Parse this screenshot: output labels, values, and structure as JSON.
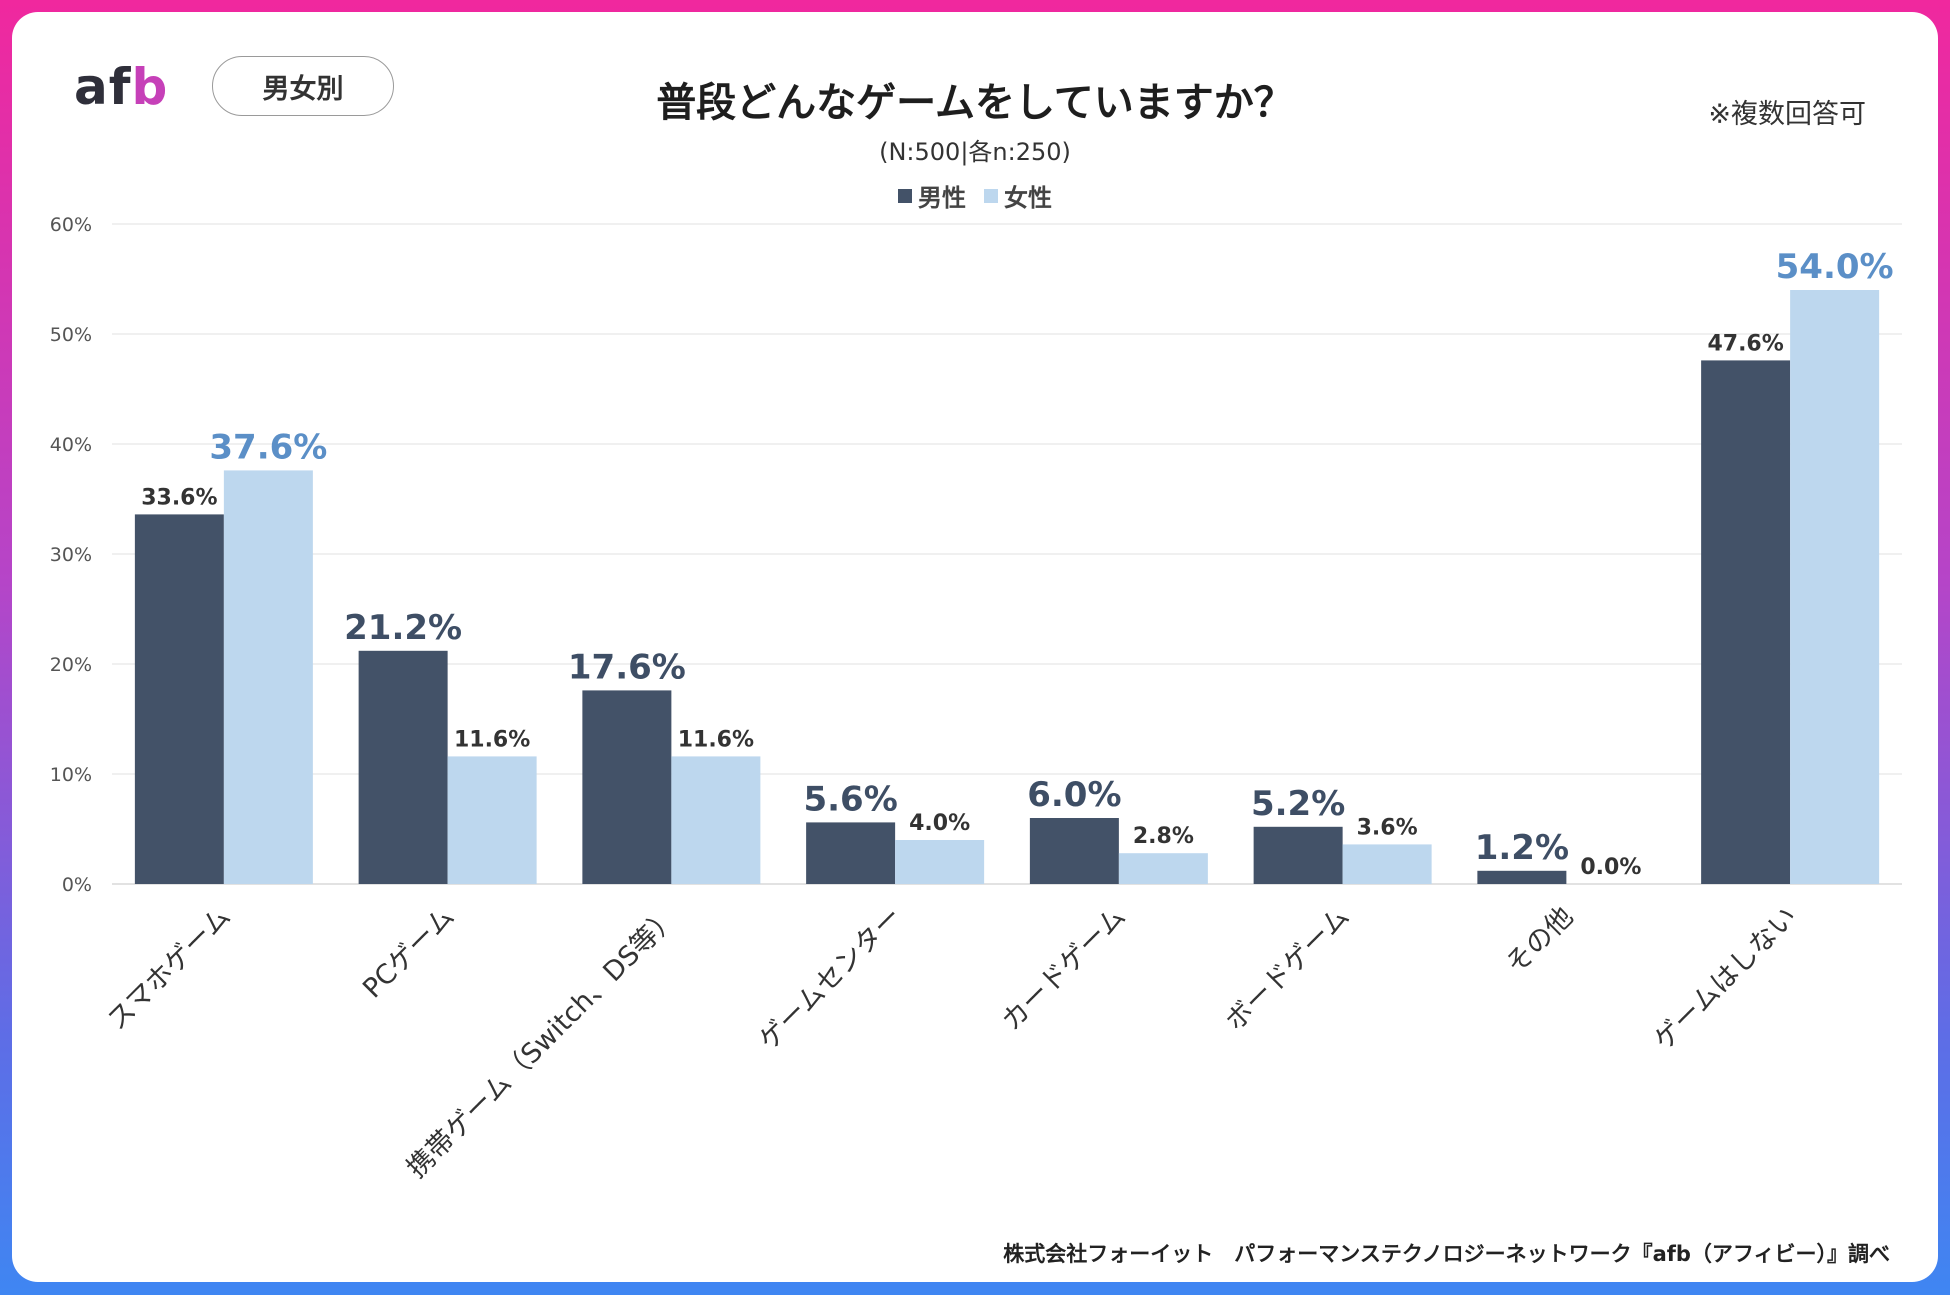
{
  "header": {
    "logo": {
      "a": "a",
      "f": "f",
      "b": "b"
    },
    "pill_label": "男女別",
    "title": "普段どんなゲームをしていますか？",
    "subtitle": "(N:500|各n:250)",
    "note": "※複数回答可"
  },
  "footer": "株式会社フォーイット　パフォーマンステクノロジーネットワーク『afb（アフィビー）』調べ",
  "colors": {
    "male": "#435268",
    "female": "#bdd7ee",
    "female_highlight": "#5b8fc7",
    "logo_b": "#c640b8"
  },
  "chart_data": {
    "type": "bar",
    "title": "普段どんなゲームをしていますか？",
    "categories": [
      "スマホゲーム",
      "PCゲーム",
      "携帯ゲーム（Switch、DS等）",
      "ゲームセンター",
      "カードゲーム",
      "ボードゲーム",
      "その他",
      "ゲームはしない"
    ],
    "series": [
      {
        "name": "男性",
        "values": [
          33.6,
          21.2,
          17.6,
          5.6,
          6.0,
          5.2,
          1.2,
          47.6
        ]
      },
      {
        "name": "女性",
        "values": [
          37.6,
          11.6,
          11.6,
          4.0,
          2.8,
          3.6,
          0.0,
          54.0
        ]
      }
    ],
    "value_labels": [
      [
        "33.6%",
        "21.2%",
        "17.6%",
        "5.6%",
        "6.0%",
        "5.2%",
        "1.2%",
        "47.6%"
      ],
      [
        "37.6%",
        "11.6%",
        "11.6%",
        "4.0%",
        "2.8%",
        "3.6%",
        "0.0%",
        "54.0%"
      ]
    ],
    "highlight": [
      [
        false,
        true,
        true,
        true,
        true,
        true,
        true,
        false
      ],
      [
        true,
        false,
        false,
        false,
        false,
        false,
        false,
        true
      ]
    ],
    "y_ticks": [
      0,
      10,
      20,
      30,
      40,
      50,
      60
    ],
    "y_tick_labels": [
      "0%",
      "10%",
      "20%",
      "30%",
      "40%",
      "50%",
      "60%"
    ],
    "ylim": [
      0,
      60
    ],
    "grid": true,
    "legend": "top-center",
    "xlabel": "",
    "ylabel": ""
  }
}
